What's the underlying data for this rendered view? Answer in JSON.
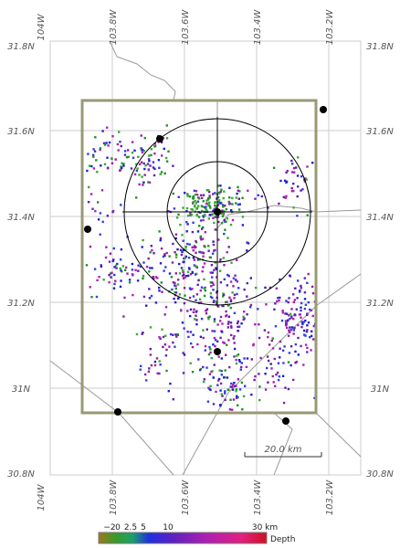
{
  "map": {
    "lon_labels": [
      "104W",
      "103.8W",
      "103.6W",
      "103.4W",
      "103.2W"
    ],
    "lat_labels": [
      "31.8N",
      "31.6N",
      "31.4N",
      "31.2N",
      "31N",
      "30.8N"
    ],
    "scale_bar": "20.0 km",
    "colorbar": {
      "labels": [
        "−2",
        "0",
        "2.5",
        "5",
        "10",
        "30 km"
      ],
      "title": "Depth"
    }
  }
}
